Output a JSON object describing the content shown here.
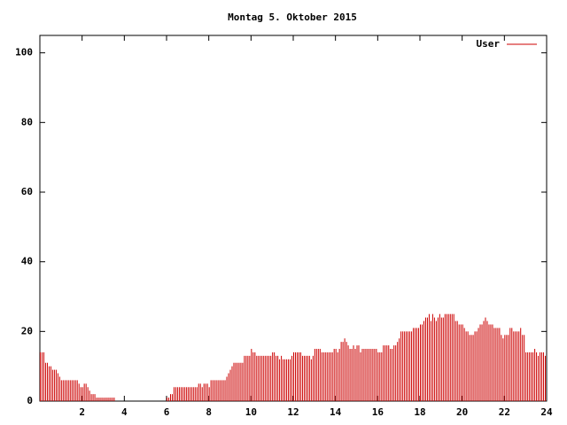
{
  "chart_data": {
    "type": "impulse",
    "title": "Montag 5. Oktober 2015",
    "xlim": [
      0,
      24
    ],
    "xticks": [
      2,
      4,
      6,
      8,
      10,
      12,
      14,
      16,
      18,
      20,
      22,
      24
    ],
    "ylim": [
      0,
      105
    ],
    "yticks": [
      0,
      20,
      40,
      60,
      80,
      100
    ],
    "legend": "top-right",
    "x": [
      0,
      0.083,
      0.167,
      0.25,
      0.333,
      0.417,
      0.5,
      0.583,
      0.667,
      0.75,
      0.833,
      0.917,
      1,
      1.083,
      1.167,
      1.25,
      1.333,
      1.417,
      1.5,
      1.583,
      1.667,
      1.75,
      1.833,
      1.917,
      2,
      2.083,
      2.167,
      2.25,
      2.333,
      2.417,
      2.5,
      2.583,
      2.667,
      2.75,
      2.833,
      2.917,
      3,
      3.083,
      3.167,
      3.25,
      3.333,
      3.417,
      3.5,
      3.583,
      3.667,
      3.75,
      3.833,
      3.917,
      4,
      4.083,
      4.167,
      4.25,
      4.333,
      4.417,
      4.5,
      4.583,
      4.667,
      4.75,
      4.833,
      4.917,
      5,
      5.083,
      5.167,
      5.25,
      5.333,
      5.417,
      5.5,
      5.583,
      5.667,
      5.75,
      5.833,
      5.917,
      6,
      6.083,
      6.167,
      6.25,
      6.333,
      6.417,
      6.5,
      6.583,
      6.667,
      6.75,
      6.833,
      6.917,
      7,
      7.083,
      7.167,
      7.25,
      7.333,
      7.417,
      7.5,
      7.583,
      7.667,
      7.75,
      7.833,
      7.917,
      8,
      8.083,
      8.167,
      8.25,
      8.333,
      8.417,
      8.5,
      8.583,
      8.667,
      8.75,
      8.833,
      8.917,
      9,
      9.083,
      9.167,
      9.25,
      9.333,
      9.417,
      9.5,
      9.583,
      9.667,
      9.75,
      9.833,
      9.917,
      10,
      10.083,
      10.167,
      10.25,
      10.333,
      10.417,
      10.5,
      10.583,
      10.667,
      10.75,
      10.833,
      10.917,
      11,
      11.083,
      11.167,
      11.25,
      11.333,
      11.417,
      11.5,
      11.583,
      11.667,
      11.75,
      11.833,
      11.917,
      12,
      12.083,
      12.167,
      12.25,
      12.333,
      12.417,
      12.5,
      12.583,
      12.667,
      12.75,
      12.833,
      12.917,
      13,
      13.083,
      13.167,
      13.25,
      13.333,
      13.417,
      13.5,
      13.583,
      13.667,
      13.75,
      13.833,
      13.917,
      14,
      14.083,
      14.167,
      14.25,
      14.333,
      14.417,
      14.5,
      14.583,
      14.667,
      14.75,
      14.833,
      14.917,
      15,
      15.083,
      15.167,
      15.25,
      15.333,
      15.417,
      15.5,
      15.583,
      15.667,
      15.75,
      15.833,
      15.917,
      16,
      16.083,
      16.167,
      16.25,
      16.333,
      16.417,
      16.5,
      16.583,
      16.667,
      16.75,
      16.833,
      16.917,
      17,
      17.083,
      17.167,
      17.25,
      17.333,
      17.417,
      17.5,
      17.583,
      17.667,
      17.75,
      17.833,
      17.917,
      18,
      18.083,
      18.167,
      18.25,
      18.333,
      18.417,
      18.5,
      18.583,
      18.667,
      18.75,
      18.833,
      18.917,
      19,
      19.083,
      19.167,
      19.25,
      19.333,
      19.417,
      19.5,
      19.583,
      19.667,
      19.75,
      19.833,
      19.917,
      20,
      20.083,
      20.167,
      20.25,
      20.333,
      20.417,
      20.5,
      20.583,
      20.667,
      20.75,
      20.833,
      20.917,
      21,
      21.083,
      21.167,
      21.25,
      21.333,
      21.417,
      21.5,
      21.583,
      21.667,
      21.75,
      21.833,
      21.917,
      22,
      22.083,
      22.167,
      22.25,
      22.333,
      22.417,
      22.5,
      22.583,
      22.667,
      22.75,
      22.833,
      22.917,
      23,
      23.083,
      23.167,
      23.25,
      23.333,
      23.417,
      23.5,
      23.583,
      23.667,
      23.75,
      23.833,
      23.917
    ],
    "series": [
      {
        "name": "User",
        "color": "#cc0000",
        "values": [
          14,
          14,
          14,
          11,
          11,
          10,
          10,
          9,
          9,
          9,
          8,
          7,
          6,
          6,
          6,
          6,
          6,
          6,
          6,
          6,
          6,
          6,
          5,
          4,
          4,
          5,
          5,
          4,
          3,
          2,
          2,
          2,
          1,
          1,
          1,
          1,
          1,
          1,
          1,
          1,
          1,
          1,
          1,
          0,
          0,
          0,
          0,
          0,
          0,
          0,
          0,
          0,
          0,
          0,
          0,
          0,
          0,
          0,
          0,
          0,
          0,
          0,
          0,
          0,
          0,
          0,
          0,
          0,
          0,
          0,
          0,
          0,
          1,
          1,
          2,
          2,
          4,
          4,
          4,
          4,
          4,
          4,
          4,
          4,
          4,
          4,
          4,
          4,
          4,
          4,
          5,
          5,
          4,
          5,
          5,
          5,
          4,
          6,
          6,
          6,
          6,
          6,
          6,
          6,
          6,
          6,
          7,
          8,
          9,
          10,
          11,
          11,
          11,
          11,
          11,
          11,
          13,
          13,
          13,
          13,
          15,
          14,
          14,
          13,
          13,
          13,
          13,
          13,
          13,
          13,
          13,
          13,
          14,
          14,
          13,
          13,
          12,
          13,
          12,
          12,
          12,
          12,
          12,
          13,
          14,
          14,
          14,
          14,
          14,
          13,
          13,
          13,
          13,
          13,
          12,
          13,
          15,
          15,
          15,
          15,
          14,
          14,
          14,
          14,
          14,
          14,
          14,
          15,
          15,
          14,
          15,
          17,
          17,
          18,
          17,
          16,
          15,
          15,
          16,
          15,
          16,
          16,
          14,
          15,
          15,
          15,
          15,
          15,
          15,
          15,
          15,
          15,
          14,
          14,
          14,
          16,
          16,
          16,
          16,
          15,
          15,
          16,
          16,
          17,
          18,
          20,
          20,
          20,
          20,
          20,
          20,
          20,
          21,
          21,
          21,
          21,
          22,
          22,
          23,
          24,
          24,
          25,
          23,
          25,
          24,
          23,
          24,
          25,
          24,
          24,
          25,
          25,
          25,
          25,
          25,
          25,
          23,
          23,
          22,
          22,
          22,
          21,
          20,
          20,
          19,
          19,
          19,
          20,
          20,
          21,
          22,
          22,
          23,
          24,
          23,
          22,
          22,
          22,
          21,
          21,
          21,
          21,
          19,
          18,
          19,
          19,
          19,
          21,
          21,
          20,
          20,
          20,
          20,
          21,
          19,
          19,
          14,
          14,
          14,
          14,
          14,
          15,
          14,
          13,
          14,
          14,
          14,
          13
        ]
      }
    ]
  }
}
